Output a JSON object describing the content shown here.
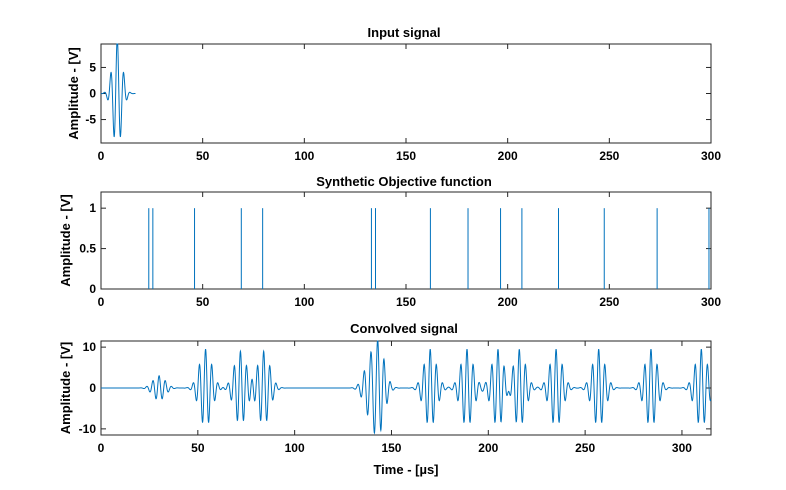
{
  "colors": {
    "series": "#0072BD",
    "axis": "#262626"
  },
  "chart_data": [
    {
      "type": "line",
      "title": "Input signal",
      "xlabel": "",
      "ylabel": "Amplitude - [V]",
      "xlim": [
        0,
        300
      ],
      "ylim": [
        -9.5,
        9.5
      ],
      "xticks": [
        0,
        50,
        100,
        150,
        200,
        250,
        300
      ],
      "yticks": [
        -5,
        0,
        5
      ],
      "grid": false,
      "signal": {
        "kind": "tone_burst",
        "x_start": 0,
        "x_end": 17,
        "center": 8,
        "width": 3.2,
        "period": 3.2,
        "amplitude": 10.5
      }
    },
    {
      "type": "line",
      "title": "Synthetic Objective function",
      "xlabel": "",
      "ylabel": "Amplitude - [V]",
      "xlim": [
        0,
        300
      ],
      "ylim": [
        0,
        1.2
      ],
      "xticks": [
        0,
        50,
        100,
        150,
        200,
        250,
        300
      ],
      "yticks": [
        0,
        0.5,
        1
      ],
      "grid": false,
      "spikes": [
        {
          "x": 23.5,
          "y": 1
        },
        {
          "x": 25.5,
          "y": 1
        },
        {
          "x": 46,
          "y": 1
        },
        {
          "x": 69,
          "y": 1
        },
        {
          "x": 79.5,
          "y": 1
        },
        {
          "x": 133,
          "y": 1
        },
        {
          "x": 135,
          "y": 1
        },
        {
          "x": 162,
          "y": 1
        },
        {
          "x": 180.5,
          "y": 1
        },
        {
          "x": 196.5,
          "y": 1
        },
        {
          "x": 207,
          "y": 1
        },
        {
          "x": 225,
          "y": 1
        },
        {
          "x": 247.5,
          "y": 1
        },
        {
          "x": 273.5,
          "y": 1
        },
        {
          "x": 299,
          "y": 1
        }
      ]
    },
    {
      "type": "line",
      "title": "Convolved signal",
      "xlabel": "Time - [µs]",
      "ylabel": "Amplitude - [V]",
      "xlim": [
        0,
        315
      ],
      "ylim": [
        -11.5,
        11.5
      ],
      "xticks": [
        0,
        50,
        100,
        150,
        200,
        250,
        300
      ],
      "yticks": [
        -10,
        0,
        10
      ],
      "grid": false,
      "bursts": [
        {
          "center": 30,
          "amplitude": 3
        },
        {
          "center": 54,
          "amplitude": 9.5
        },
        {
          "center": 72,
          "amplitude": 9
        },
        {
          "center": 84,
          "amplitude": 9
        },
        {
          "center": 139,
          "amplitude": 6.5
        },
        {
          "center": 143,
          "amplitude": 11.5
        },
        {
          "center": 170,
          "amplitude": 9.5
        },
        {
          "center": 189,
          "amplitude": 9.5
        },
        {
          "center": 205,
          "amplitude": 9.5
        },
        {
          "center": 216,
          "amplitude": 9.5
        },
        {
          "center": 235,
          "amplitude": 9.5
        },
        {
          "center": 257,
          "amplitude": 9.5
        },
        {
          "center": 284,
          "amplitude": 9.5
        },
        {
          "center": 310,
          "amplitude": 9.5
        }
      ],
      "burst_shape": {
        "width": 3.2,
        "period": 3.2
      }
    }
  ]
}
